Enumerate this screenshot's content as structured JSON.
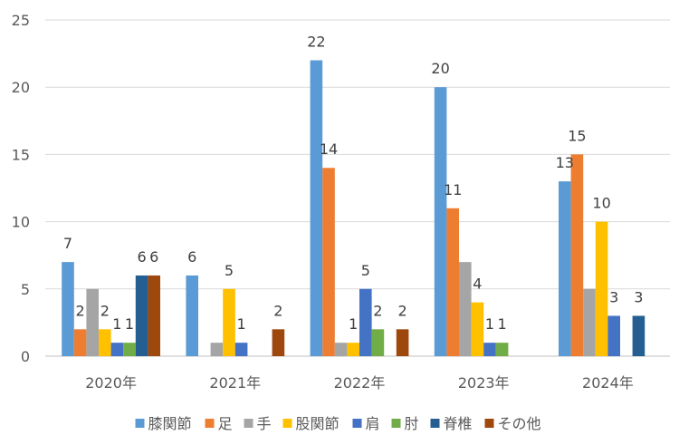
{
  "chart_data": {
    "type": "bar",
    "categories": [
      "2020年",
      "2021年",
      "2022年",
      "2023年",
      "2024年"
    ],
    "series": [
      {
        "name": "膝関節",
        "color": "#5b9bd5",
        "values": [
          7,
          6,
          22,
          20,
          13
        ]
      },
      {
        "name": "足",
        "color": "#ed7d31",
        "values": [
          2,
          null,
          14,
          11,
          15
        ]
      },
      {
        "name": "手",
        "color": "#a5a5a5",
        "values": [
          5,
          1,
          1,
          7,
          5
        ]
      },
      {
        "name": "股関節",
        "color": "#ffc000",
        "values": [
          2,
          5,
          1,
          4,
          10
        ]
      },
      {
        "name": "肩",
        "color": "#4472c4",
        "values": [
          1,
          1,
          5,
          1,
          3
        ]
      },
      {
        "name": "肘",
        "color": "#70ad47",
        "values": [
          1,
          null,
          2,
          1,
          null
        ]
      },
      {
        "name": "脊椎",
        "color": "#255e91",
        "values": [
          6,
          null,
          null,
          null,
          3
        ]
      },
      {
        "name": "その他",
        "color": "#9e480e",
        "values": [
          6,
          2,
          2,
          null,
          null
        ]
      }
    ],
    "data_labels": [
      [
        "7",
        "2",
        "",
        "2",
        "1",
        "1",
        "6",
        "6"
      ],
      [
        "6",
        "",
        "",
        "5",
        "1",
        "",
        "",
        "2"
      ],
      [
        "22",
        "14",
        "",
        "1",
        "5",
        "2",
        "",
        "2"
      ],
      [
        "20",
        "11",
        "",
        "4",
        "1",
        "1",
        "",
        ""
      ],
      [
        "13",
        "15",
        "",
        "10",
        "3",
        "",
        "3",
        ""
      ]
    ],
    "y_ticks": [
      "0",
      "5",
      "10",
      "15",
      "20",
      "25"
    ],
    "ylim": [
      0,
      25
    ],
    "grid": true,
    "legend_position": "bottom"
  }
}
